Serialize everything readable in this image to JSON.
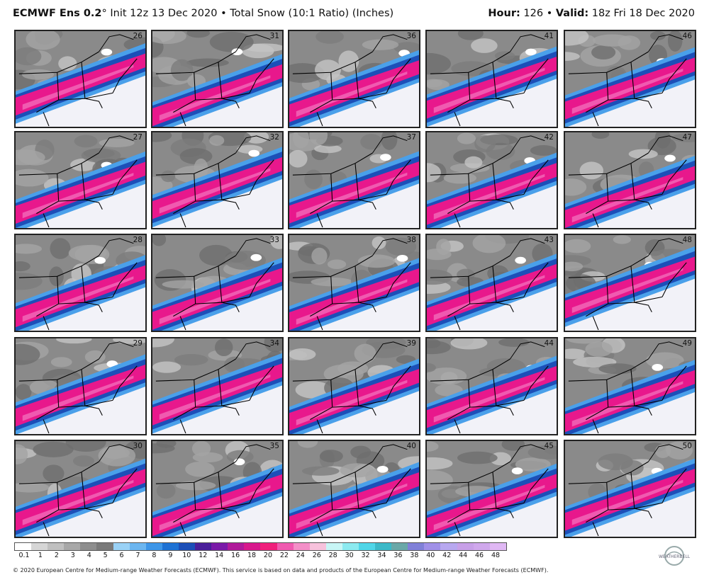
{
  "header": {
    "model": "ECMWF Ens 0.2",
    "degree": "°",
    "init": " Init 12z 13 Dec 2020 • Total Snow (10:1 Ratio) (Inches)",
    "hour_label": "Hour:",
    "hour_value": " 126 • ",
    "valid_label": "Valid:",
    "valid_value": " 18z Fri 18 Dec 2020"
  },
  "members": [
    [
      "26",
      "31",
      "36",
      "41",
      "46"
    ],
    [
      "27",
      "32",
      "37",
      "42",
      "47"
    ],
    [
      "28",
      "33",
      "38",
      "43",
      "48"
    ],
    [
      "29",
      "34",
      "39",
      "44",
      "49"
    ],
    [
      "30",
      "35",
      "40",
      "45",
      "50"
    ]
  ],
  "colorbar": {
    "ticks": [
      "0.1",
      "1",
      "2",
      "3",
      "4",
      "5",
      "6",
      "7",
      "8",
      "9",
      "10",
      "12",
      "14",
      "16",
      "18",
      "20",
      "22",
      "24",
      "26",
      "28",
      "30",
      "32",
      "34",
      "36",
      "38",
      "40",
      "42",
      "44",
      "46",
      "48"
    ],
    "colors": [
      "#ffffff",
      "#d6d6d6",
      "#c0c0c0",
      "#a8a8a8",
      "#8e8e8e",
      "#7a7a7a",
      "#9ad2f6",
      "#6cb6f0",
      "#3d96e8",
      "#1e72d4",
      "#1c4fb8",
      "#4a1f9a",
      "#7a1aa8",
      "#b01a9a",
      "#d8188c",
      "#f0207c",
      "#f05ab0",
      "#f48fc8",
      "#f7c2dc",
      "#c8f6f6",
      "#8ceaf0",
      "#50d6e8",
      "#3cb9c8",
      "#6aa8a8",
      "#8080d8",
      "#a090e8",
      "#b8a8f0",
      "#c8a0e8",
      "#d0a8ec",
      "#e0b8f4"
    ]
  },
  "footer": "© 2020 European Centre for Medium-range Weather Forecasts (ECMWF). This service is based on data and products of the European Centre for Medium-range Weather Forecasts (ECMWF).",
  "logo_text": "WEATHERBELL"
}
